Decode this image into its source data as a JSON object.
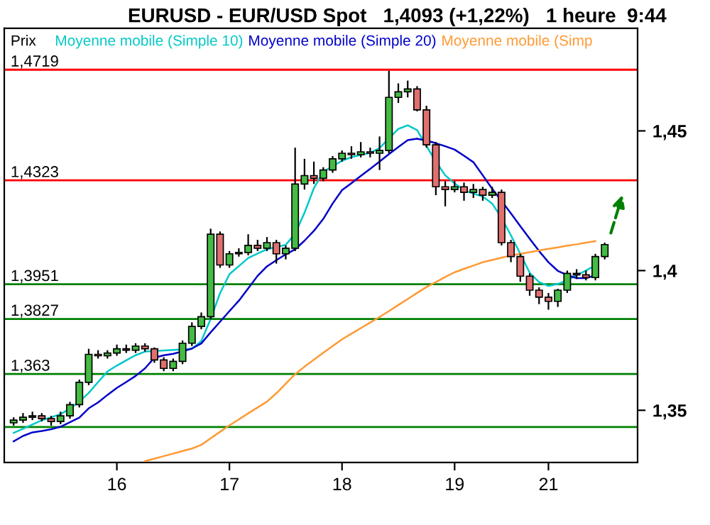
{
  "chart_data": {
    "type": "candlestick",
    "title": "EURUSD - EUR/USD Spot   1,4093 (+1,22%)   1 heure  9:44",
    "annotations": [
      "Prix"
    ],
    "categories": [
      null,
      null,
      null,
      null,
      null,
      null,
      null,
      null,
      null,
      null,
      null,
      "16",
      null,
      null,
      null,
      null,
      null,
      null,
      null,
      null,
      null,
      null,
      null,
      "17",
      null,
      null,
      null,
      null,
      null,
      null,
      null,
      null,
      null,
      null,
      null,
      "18",
      null,
      null,
      null,
      null,
      null,
      null,
      null,
      null,
      null,
      null,
      null,
      "19",
      null,
      null,
      null,
      null,
      null,
      null,
      null,
      null,
      null,
      "21",
      null,
      null,
      null,
      null,
      null,
      null
    ],
    "ohlc": [
      [
        1.3455,
        1.3475,
        1.3445,
        1.3465
      ],
      [
        1.3465,
        1.349,
        1.3455,
        1.3475
      ],
      [
        1.3475,
        1.3495,
        1.3465,
        1.348
      ],
      [
        1.348,
        1.349,
        1.346,
        1.347
      ],
      [
        1.347,
        1.348,
        1.3445,
        1.346
      ],
      [
        1.346,
        1.3495,
        1.345,
        1.348
      ],
      [
        1.348,
        1.353,
        1.347,
        1.352
      ],
      [
        1.352,
        1.361,
        1.351,
        1.36
      ],
      [
        1.36,
        1.372,
        1.359,
        1.37
      ],
      [
        1.37,
        1.3715,
        1.3685,
        1.3695
      ],
      [
        1.3695,
        1.3715,
        1.3685,
        1.3705
      ],
      [
        1.3705,
        1.3735,
        1.3695,
        1.372
      ],
      [
        1.372,
        1.3735,
        1.3705,
        1.3715
      ],
      [
        1.3715,
        1.374,
        1.3705,
        1.373
      ],
      [
        1.373,
        1.374,
        1.371,
        1.372
      ],
      [
        1.372,
        1.3725,
        1.367,
        1.368
      ],
      [
        1.368,
        1.369,
        1.364,
        1.365
      ],
      [
        1.365,
        1.3685,
        1.364,
        1.3675
      ],
      [
        1.3675,
        1.375,
        1.3665,
        1.374
      ],
      [
        1.374,
        1.3815,
        1.373,
        1.38
      ],
      [
        1.38,
        1.385,
        1.379,
        1.3835
      ],
      [
        1.3835,
        1.415,
        1.3825,
        1.413
      ],
      [
        1.413,
        1.414,
        1.401,
        1.402
      ],
      [
        1.402,
        1.407,
        1.401,
        1.406
      ],
      [
        1.406,
        1.408,
        1.405,
        1.4065
      ],
      [
        1.4065,
        1.413,
        1.4055,
        1.409
      ],
      [
        1.409,
        1.411,
        1.407,
        1.408
      ],
      [
        1.408,
        1.412,
        1.407,
        1.41
      ],
      [
        1.41,
        1.411,
        1.4025,
        1.406
      ],
      [
        1.406,
        1.409,
        1.404,
        1.408
      ],
      [
        1.408,
        1.444,
        1.407,
        1.431
      ],
      [
        1.431,
        1.44,
        1.429,
        1.434
      ],
      [
        1.434,
        1.439,
        1.431,
        1.433
      ],
      [
        1.433,
        1.437,
        1.432,
        1.436
      ],
      [
        1.436,
        1.441,
        1.435,
        1.44
      ],
      [
        1.44,
        1.443,
        1.439,
        1.442
      ],
      [
        1.442,
        1.4445,
        1.44,
        1.4415
      ],
      [
        1.4415,
        1.446,
        1.4405,
        1.4425
      ],
      [
        1.4425,
        1.444,
        1.4405,
        1.442
      ],
      [
        1.442,
        1.448,
        1.436,
        1.443
      ],
      [
        1.443,
        1.4715,
        1.442,
        1.462
      ],
      [
        1.462,
        1.467,
        1.46,
        1.464
      ],
      [
        1.464,
        1.468,
        1.462,
        1.465
      ],
      [
        1.465,
        1.466,
        1.457,
        1.4575
      ],
      [
        1.4575,
        1.459,
        1.444,
        1.445
      ],
      [
        1.445,
        1.446,
        1.427,
        1.43
      ],
      [
        1.43,
        1.432,
        1.423,
        1.429
      ],
      [
        1.429,
        1.432,
        1.428,
        1.43
      ],
      [
        1.43,
        1.4315,
        1.425,
        1.428
      ],
      [
        1.428,
        1.431,
        1.426,
        1.429
      ],
      [
        1.429,
        1.43,
        1.425,
        1.427
      ],
      [
        1.427,
        1.43,
        1.426,
        1.428
      ],
      [
        1.428,
        1.429,
        1.409,
        1.41
      ],
      [
        1.41,
        1.411,
        1.403,
        1.405
      ],
      [
        1.405,
        1.406,
        1.396,
        1.398
      ],
      [
        1.398,
        1.399,
        1.391,
        1.393
      ],
      [
        1.393,
        1.394,
        1.388,
        1.3905
      ],
      [
        1.3905,
        1.392,
        1.386,
        1.389
      ],
      [
        1.389,
        1.3935,
        1.387,
        1.393
      ],
      [
        1.393,
        1.4,
        1.392,
        1.399
      ],
      [
        1.399,
        1.4005,
        1.397,
        1.3985
      ],
      [
        1.3985,
        1.4,
        1.3965,
        1.3975
      ],
      [
        1.3975,
        1.406,
        1.3965,
        1.405
      ],
      [
        1.405,
        1.41,
        1.404,
        1.4093
      ]
    ],
    "series": [
      {
        "type": "line",
        "name": "Moyenne mobile (Simple 10)",
        "color": "#00c8c8",
        "values": [
          1.3419,
          1.3434,
          1.3449,
          1.3464,
          1.3475,
          1.3486,
          1.3506,
          1.3531,
          1.3562,
          1.3601,
          1.3639,
          1.366,
          1.3679,
          1.3697,
          1.371,
          1.3712,
          1.3714,
          1.3716,
          1.3718,
          1.372,
          1.3748,
          1.3827,
          1.3919,
          1.3987,
          1.4016,
          1.4045,
          1.4061,
          1.4076,
          1.4085,
          1.4092,
          1.4132,
          1.4207,
          1.4295,
          1.4353,
          1.4374,
          1.4393,
          1.4406,
          1.4414,
          1.4421,
          1.4439,
          1.4473,
          1.4507,
          1.452,
          1.4503,
          1.4446,
          1.439,
          1.4341,
          1.4312,
          1.4287,
          1.4276,
          1.4265,
          1.424,
          1.4189,
          1.4126,
          1.406,
          1.3992,
          1.3959,
          1.3945,
          1.3952,
          1.3966,
          1.3983,
          1.4,
          1.4019,
          null
        ]
      },
      {
        "type": "line",
        "name": "Moyenne mobile (Simple 20)",
        "color": "#0000c8",
        "values": [
          1.3389,
          1.3408,
          1.3421,
          1.3426,
          1.3432,
          1.3441,
          1.3457,
          1.3474,
          1.3507,
          1.3528,
          1.3555,
          1.358,
          1.3601,
          1.3623,
          1.365,
          1.3688,
          1.3697,
          1.3702,
          1.3711,
          1.3721,
          1.3739,
          1.3779,
          1.3817,
          1.3855,
          1.3892,
          1.3936,
          1.3981,
          1.4015,
          1.4037,
          1.4058,
          1.4076,
          1.4107,
          1.4142,
          1.4185,
          1.424,
          1.4288,
          1.4313,
          1.4339,
          1.4364,
          1.439,
          1.4417,
          1.4442,
          1.4467,
          1.4472,
          1.4465,
          1.4456,
          1.4445,
          1.4433,
          1.4411,
          1.4388,
          1.4341,
          1.4293,
          1.4249,
          1.4205,
          1.4159,
          1.4114,
          1.407,
          1.403,
          1.3999,
          1.3984,
          1.3973,
          1.3973,
          1.3983,
          null
        ]
      },
      {
        "type": "line",
        "name": "Moyenne mobile (Simp",
        "color": "#ff9933",
        "values": [
          null,
          null,
          null,
          null,
          null,
          null,
          null,
          null,
          null,
          null,
          null,
          null,
          null,
          null,
          1.3318,
          1.3327,
          1.3336,
          1.3345,
          1.3354,
          1.3363,
          1.3376,
          1.34,
          1.3423,
          1.3446,
          1.3467,
          1.3489,
          1.351,
          1.3531,
          1.3561,
          1.3595,
          1.3629,
          1.3656,
          1.3681,
          1.3706,
          1.373,
          1.3754,
          1.3774,
          1.3794,
          1.3814,
          1.3834,
          1.3855,
          1.3877,
          1.3898,
          1.392,
          1.3941,
          1.3959,
          1.3977,
          1.3994,
          1.4006,
          1.4018,
          1.403,
          1.4038,
          1.4046,
          1.4054,
          1.406,
          1.4066,
          1.4072,
          1.4078,
          1.4083,
          1.4089,
          1.4094,
          1.41,
          1.4105,
          null
        ]
      }
    ],
    "ref_lines": [
      {
        "axis": "y",
        "value": 1.4719,
        "label": "1,4719",
        "color": "#ff0000"
      },
      {
        "axis": "y",
        "value": 1.4323,
        "label": "1,4323",
        "color": "#ff0000"
      },
      {
        "axis": "y",
        "value": 1.3951,
        "label": "1,3951",
        "color": "#008000"
      },
      {
        "axis": "y",
        "value": 1.3827,
        "label": "1,3827",
        "color": "#008000"
      },
      {
        "axis": "y",
        "value": 1.363,
        "label": "1,363",
        "color": "#008000"
      },
      {
        "axis": "y",
        "value": 1.344,
        "label": null,
        "color": "#008000"
      }
    ],
    "ylim": [
      1.3313,
      1.4867
    ],
    "yticks": [
      {
        "value": 1.45,
        "label": "1,45"
      },
      {
        "value": 1.4,
        "label": "1,4"
      },
      {
        "value": 1.35,
        "label": "1,35"
      }
    ],
    "grid": false
  }
}
